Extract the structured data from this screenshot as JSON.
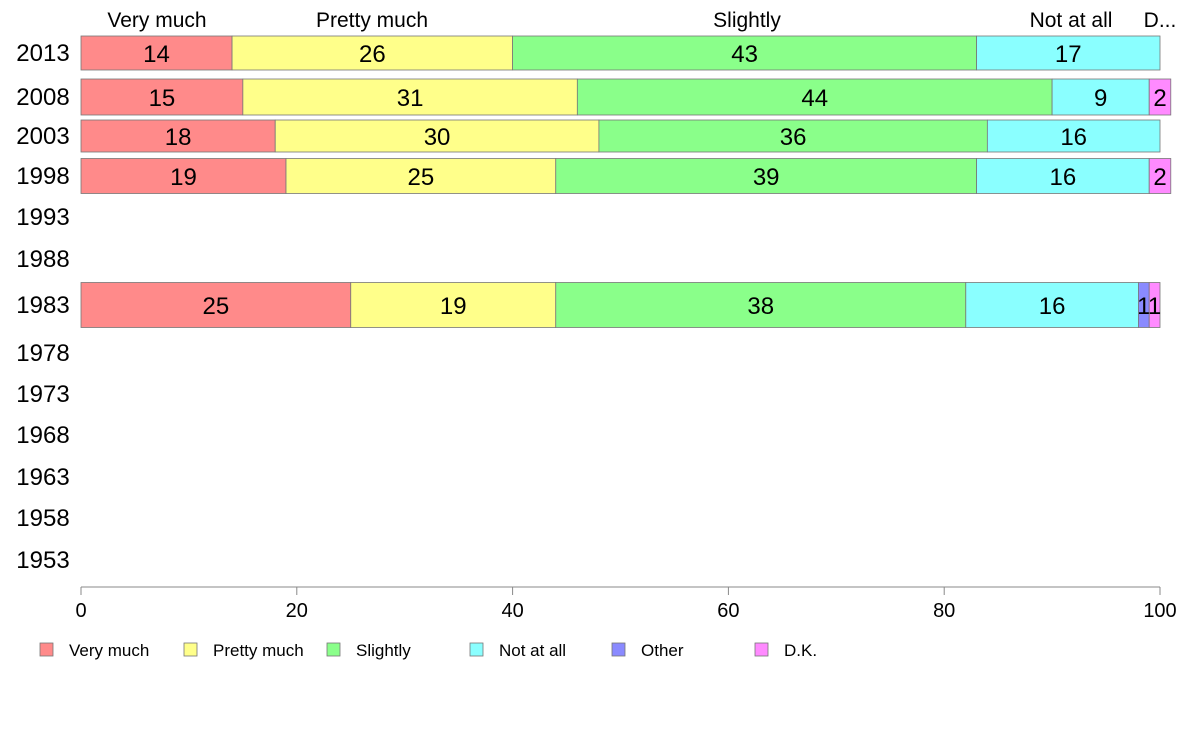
{
  "chart_data": {
    "type": "bar",
    "orientation": "horizontal",
    "stacked": true,
    "categories": [
      "2013",
      "2008",
      "2003",
      "1998",
      "1993",
      "1988",
      "1983",
      "1978",
      "1973",
      "1968",
      "1963",
      "1958",
      "1953"
    ],
    "series": [
      {
        "name": "Very much",
        "color": "#FF8A8A",
        "values": [
          14,
          15,
          18,
          19,
          null,
          null,
          25,
          null,
          null,
          null,
          null,
          null,
          null
        ]
      },
      {
        "name": "Pretty much",
        "color": "#FFFF8A",
        "values": [
          26,
          31,
          30,
          25,
          null,
          null,
          19,
          null,
          null,
          null,
          null,
          null,
          null
        ]
      },
      {
        "name": "Slightly",
        "color": "#8AFF8A",
        "values": [
          43,
          44,
          36,
          39,
          null,
          null,
          38,
          null,
          null,
          null,
          null,
          null,
          null
        ]
      },
      {
        "name": "Not at all",
        "color": "#8AFFFF",
        "values": [
          17,
          9,
          16,
          16,
          null,
          null,
          16,
          null,
          null,
          null,
          null,
          null,
          null
        ]
      },
      {
        "name": "Other",
        "color": "#8A8AFF",
        "values": [
          null,
          null,
          null,
          null,
          null,
          null,
          1,
          null,
          null,
          null,
          null,
          null,
          null
        ]
      },
      {
        "name": "D.K.",
        "color": "#FF8AFF",
        "values": [
          null,
          2,
          null,
          2,
          null,
          null,
          1,
          null,
          null,
          null,
          null,
          null,
          null
        ]
      }
    ],
    "top_labels": [
      "Very much",
      "Pretty much",
      "Slightly",
      "Not at all",
      "D.K."
    ],
    "xlim": [
      0,
      100
    ],
    "xticks": [
      0,
      20,
      40,
      60,
      80,
      100
    ],
    "title": "",
    "xlabel": "",
    "ylabel": "",
    "grid": false,
    "legend_position": "bottom"
  }
}
